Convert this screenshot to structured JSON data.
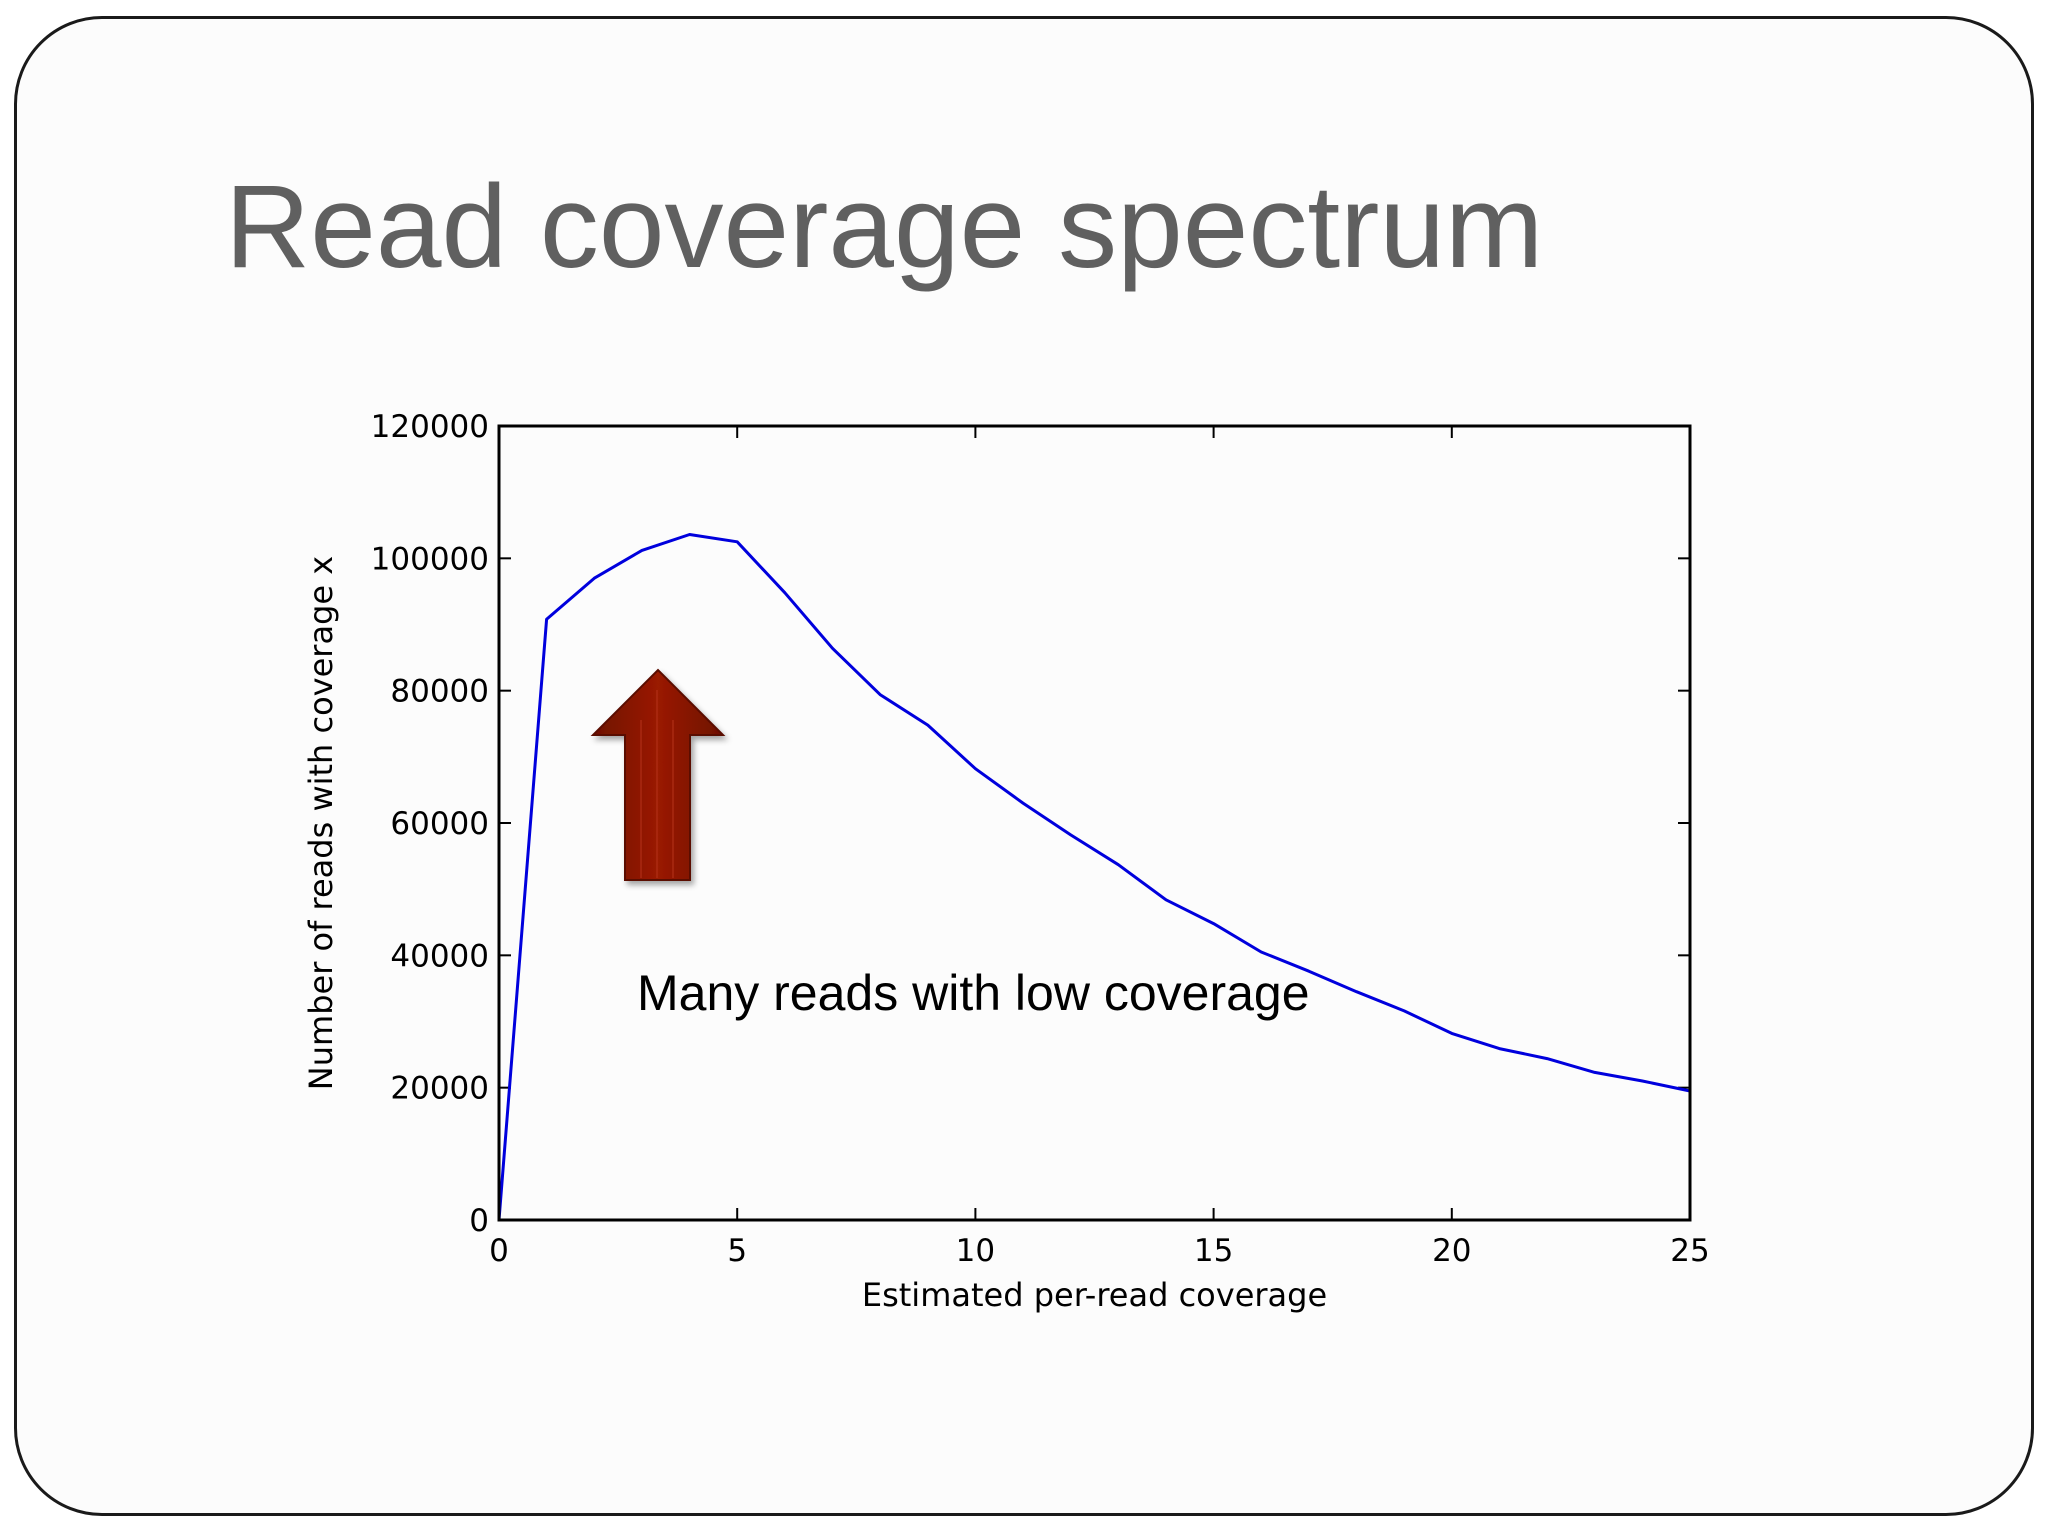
{
  "slide": {
    "title": "Read coverage spectrum"
  },
  "chart_data": {
    "type": "line",
    "title": "",
    "xlabel": "Estimated per-read coverage",
    "ylabel": "Number of reads with coverage x",
    "xlim": [
      0,
      25
    ],
    "ylim": [
      0,
      120000
    ],
    "x_ticks": [
      0,
      5,
      10,
      15,
      20,
      25
    ],
    "y_ticks": [
      0,
      20000,
      40000,
      60000,
      80000,
      100000,
      120000
    ],
    "grid": false,
    "series": [
      {
        "color": "#0000dd",
        "x": [
          0,
          1,
          2,
          3,
          4,
          5,
          6,
          7,
          8,
          9,
          10,
          11,
          12,
          13,
          14,
          15,
          16,
          17,
          18,
          19,
          20,
          21,
          22,
          23,
          24,
          25
        ],
        "y": [
          0,
          90800,
          97000,
          101200,
          103600,
          102500,
          94800,
          86400,
          79400,
          74800,
          68200,
          63000,
          58200,
          53700,
          48400,
          44800,
          40500,
          37600,
          34500,
          31600,
          28200,
          25900,
          24400,
          22300,
          21000,
          19500
        ]
      }
    ],
    "annotation": {
      "text": "Many reads with low coverage",
      "arrow_color": "#8b1500"
    }
  }
}
